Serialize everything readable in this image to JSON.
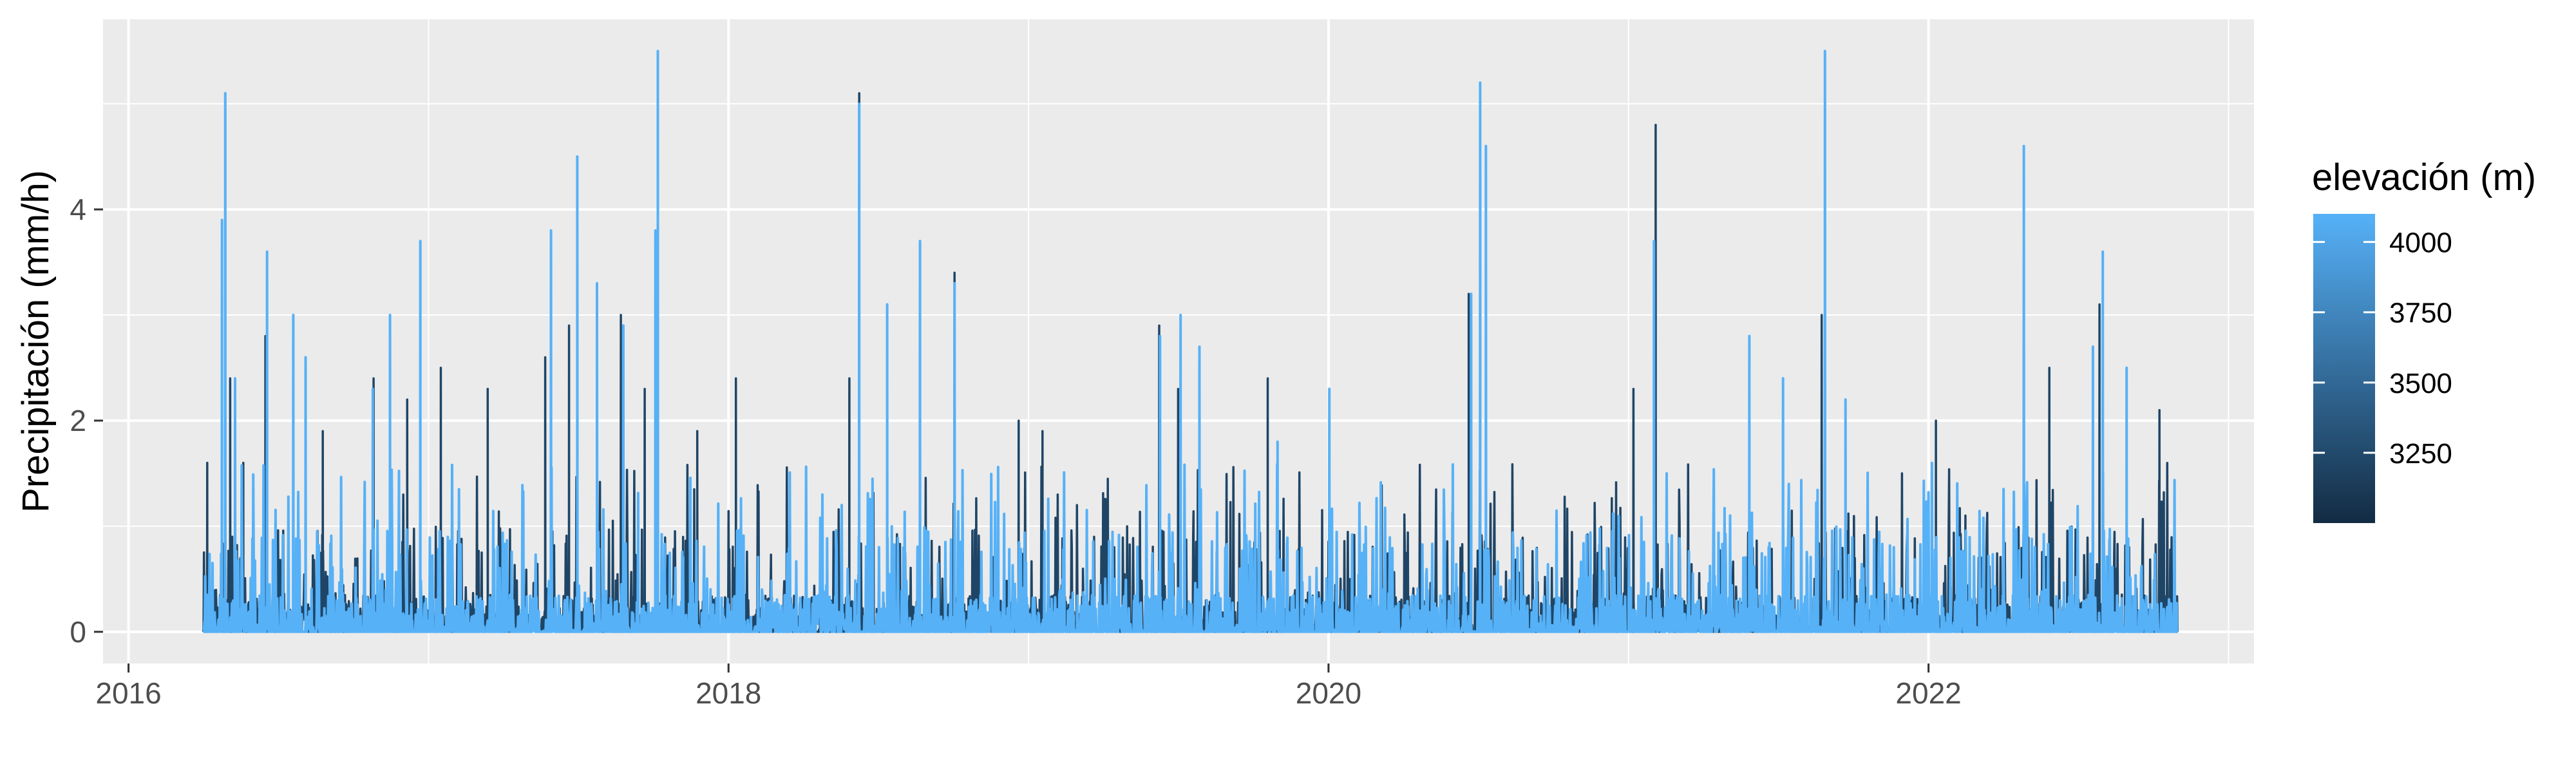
{
  "chart_data": {
    "type": "line",
    "title": "",
    "xlabel": "",
    "ylabel": "Precipitación (mm/h)",
    "x_range": [
      "2016-04-01",
      "2022-11-01"
    ],
    "xlim": [
      "2015-12-01",
      "2023-02-01"
    ],
    "ylim": [
      -0.3,
      5.8
    ],
    "x_ticks": [
      "2016",
      "2018",
      "2020",
      "2022"
    ],
    "y_ticks": [
      "0",
      "2",
      "4"
    ],
    "grid": true,
    "background": "#ebebeb",
    "legend": {
      "title": "elevación (m)",
      "placement": "right",
      "type": "colorbar",
      "range": [
        3000,
        4100
      ],
      "ticks": [
        "3250",
        "3500",
        "3750",
        "4000"
      ],
      "colors": [
        "#132b43",
        "#56b1f7"
      ]
    },
    "series": [
      {
        "color": "#56b1f7",
        "peaks": [
          {
            "x": "2016-04-24",
            "y": 3.9
          },
          {
            "x": "2016-04-28",
            "y": 5.1
          },
          {
            "x": "2016-05-10",
            "y": 2.4
          },
          {
            "x": "2016-06-18",
            "y": 3.6
          },
          {
            "x": "2016-07-20",
            "y": 3.0
          },
          {
            "x": "2016-08-04",
            "y": 2.6
          },
          {
            "x": "2016-10-25",
            "y": 2.3
          },
          {
            "x": "2016-11-15",
            "y": 3.0
          },
          {
            "x": "2016-12-22",
            "y": 3.7
          },
          {
            "x": "2017-05-30",
            "y": 3.8
          },
          {
            "x": "2017-07-01",
            "y": 4.5
          },
          {
            "x": "2017-07-25",
            "y": 3.3
          },
          {
            "x": "2017-08-26",
            "y": 2.9
          },
          {
            "x": "2017-10-04",
            "y": 3.8
          },
          {
            "x": "2017-10-07",
            "y": 5.5
          },
          {
            "x": "2018-06-09",
            "y": 5.0
          },
          {
            "x": "2018-07-13",
            "y": 3.1
          },
          {
            "x": "2018-08-22",
            "y": 3.7
          },
          {
            "x": "2018-10-03",
            "y": 3.3
          },
          {
            "x": "2019-06-10",
            "y": 2.8
          },
          {
            "x": "2019-07-05",
            "y": 3.0
          },
          {
            "x": "2019-07-28",
            "y": 2.7
          },
          {
            "x": "2019-10-31",
            "y": 1.8
          },
          {
            "x": "2020-01-02",
            "y": 2.3
          },
          {
            "x": "2020-06-23",
            "y": 3.2
          },
          {
            "x": "2020-07-04",
            "y": 5.2
          },
          {
            "x": "2020-07-11",
            "y": 4.6
          },
          {
            "x": "2021-02-01",
            "y": 3.7
          },
          {
            "x": "2021-05-28",
            "y": 2.8
          },
          {
            "x": "2021-07-08",
            "y": 2.4
          },
          {
            "x": "2021-08-28",
            "y": 5.5
          },
          {
            "x": "2021-09-22",
            "y": 2.2
          },
          {
            "x": "2022-04-27",
            "y": 4.6
          },
          {
            "x": "2022-07-20",
            "y": 2.7
          },
          {
            "x": "2022-08-01",
            "y": 3.6
          },
          {
            "x": "2022-08-30",
            "y": 2.5
          }
        ]
      },
      {
        "color": "#1f4566",
        "peaks": [
          {
            "x": "2016-04-06",
            "y": 1.6
          },
          {
            "x": "2016-05-04",
            "y": 2.4
          },
          {
            "x": "2016-05-20",
            "y": 1.6
          },
          {
            "x": "2016-06-16",
            "y": 2.8
          },
          {
            "x": "2016-08-25",
            "y": 1.9
          },
          {
            "x": "2016-10-26",
            "y": 2.4
          },
          {
            "x": "2016-12-06",
            "y": 2.2
          },
          {
            "x": "2017-01-16",
            "y": 2.5
          },
          {
            "x": "2017-03-14",
            "y": 2.3
          },
          {
            "x": "2017-05-23",
            "y": 2.6
          },
          {
            "x": "2017-06-21",
            "y": 2.9
          },
          {
            "x": "2017-08-23",
            "y": 3.0
          },
          {
            "x": "2017-09-21",
            "y": 2.3
          },
          {
            "x": "2017-11-24",
            "y": 1.9
          },
          {
            "x": "2018-01-10",
            "y": 2.4
          },
          {
            "x": "2018-05-28",
            "y": 2.4
          },
          {
            "x": "2018-06-09",
            "y": 5.1
          },
          {
            "x": "2018-10-03",
            "y": 3.4
          },
          {
            "x": "2018-12-20",
            "y": 2.0
          },
          {
            "x": "2019-01-18",
            "y": 1.9
          },
          {
            "x": "2019-06-09",
            "y": 2.9
          },
          {
            "x": "2019-07-02",
            "y": 2.3
          },
          {
            "x": "2019-10-19",
            "y": 2.4
          },
          {
            "x": "2020-06-20",
            "y": 3.2
          },
          {
            "x": "2021-01-07",
            "y": 2.3
          },
          {
            "x": "2021-02-03",
            "y": 4.8
          },
          {
            "x": "2021-08-24",
            "y": 3.0
          },
          {
            "x": "2022-01-10",
            "y": 2.0
          },
          {
            "x": "2022-05-28",
            "y": 2.5
          },
          {
            "x": "2022-07-28",
            "y": 3.1
          },
          {
            "x": "2022-10-09",
            "y": 2.1
          }
        ]
      }
    ]
  }
}
